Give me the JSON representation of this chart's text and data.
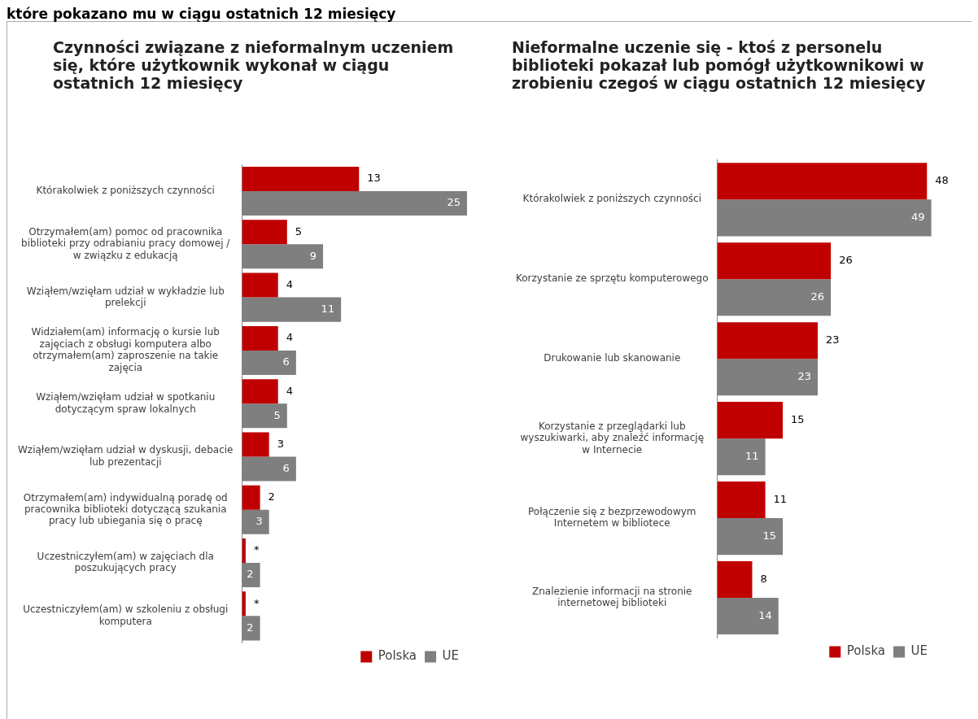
{
  "chart_data": [
    {
      "type": "bar",
      "orientation": "horizontal",
      "title": "Czynności związane z nieformalnym uczeniem się, które użytkownik wykonał w ciągu ostatnich 12 miesięcy",
      "annotations": [
        "które pokazano mu w ciągu ostatnich 12 miesięcy"
      ],
      "categories": [
        "Którakolwiek z poniższych czynności",
        "Otrzymałem(am) pomoc od pracownika biblioteki przy odrabianiu pracy domowej / w związku z edukacją",
        "Wziąłem/wzięłam udział w wykładzie lub prelekcji",
        "Widziałem(am) informację o kursie lub zajęciach z obsługi komputera albo otrzymałem(am) zaproszenie na takie zajęcia",
        "Wziąłem/wzięłam udział w spotkaniu dotyczącym spraw lokalnych",
        "Wziąłem/wzięłam udział w dyskusji, debacie lub prezentacji",
        "Otrzymałem(am) indywidualną poradę od pracownika biblioteki dotyczącą szukania pracy lub ubiegania się o pracę",
        "Uczestniczyłem(am) w zajęciach dla poszukujących pracy",
        "Uczestniczyłem(am) w szkoleniu z obsługi komputera"
      ],
      "series": [
        {
          "name": "Polska",
          "color": "#c00000",
          "values": [
            13,
            5,
            4,
            4,
            4,
            3,
            2,
            0.4,
            0.4
          ],
          "value_labels": [
            "13",
            "5",
            "4",
            "4",
            "4",
            "3",
            "2",
            "*",
            "*"
          ]
        },
        {
          "name": "UE",
          "color": "#7f7f7f",
          "values": [
            25,
            9,
            11,
            6,
            5,
            6,
            3,
            2,
            2
          ],
          "value_labels": [
            "25",
            "9",
            "11",
            "6",
            "5",
            "6",
            "3",
            "2",
            "2"
          ]
        }
      ],
      "legend": "bottom right"
    },
    {
      "type": "bar",
      "orientation": "horizontal",
      "title": "Nieformalne uczenie się - ktoś z personelu biblioteki pokazał lub pomógł użytkownikowi w zrobieniu czegoś w ciągu ostatnich 12 miesięcy",
      "categories": [
        "Którakolwiek z poniższych czynności",
        "Korzystanie ze sprzętu komputerowego",
        "Drukowanie lub skanowanie",
        "Korzystanie z przeglądarki lub wyszukiwarki, aby znaleźć informację w Internecie",
        "Połączenie się z bezprzewodowym Internetem w bibliotece",
        "Znalezienie informacji na stronie internetowej biblioteki"
      ],
      "series": [
        {
          "name": "Polska",
          "color": "#c00000",
          "values": [
            48,
            26,
            23,
            15,
            11,
            8
          ],
          "value_labels": [
            "48",
            "26",
            "23",
            "15",
            "11",
            "8"
          ]
        },
        {
          "name": "UE",
          "color": "#7f7f7f",
          "values": [
            49,
            26,
            23,
            11,
            15,
            14
          ],
          "value_labels": [
            "49",
            "26",
            "23",
            "11",
            "15",
            "14"
          ]
        }
      ],
      "legend": "bottom right"
    }
  ]
}
